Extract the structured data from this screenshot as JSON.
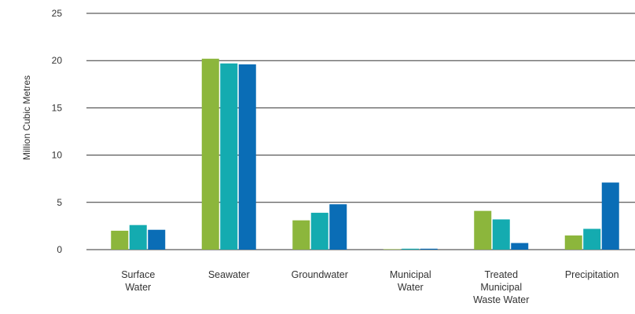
{
  "chart_data": {
    "type": "bar",
    "title": "",
    "xlabel": "",
    "ylabel": "Million Cubic Metres",
    "ylim": [
      0,
      25
    ],
    "yticks": [
      0,
      5,
      10,
      15,
      20,
      25
    ],
    "grid": true,
    "legend": "none",
    "categories": [
      [
        "Surface",
        "Water"
      ],
      [
        "Seawater"
      ],
      [
        "Groundwater"
      ],
      [
        "Municipal",
        "Water"
      ],
      [
        "Treated",
        "Municipal",
        "Waste Water"
      ],
      [
        "Precipitation"
      ]
    ],
    "series": [
      {
        "color": "#8cb63c",
        "values": [
          2.0,
          20.2,
          3.1,
          0.05,
          4.1,
          1.5
        ]
      },
      {
        "color": "#14abb0",
        "values": [
          2.6,
          19.7,
          3.9,
          0.1,
          3.2,
          2.2
        ]
      },
      {
        "color": "#0a6db6",
        "values": [
          2.1,
          19.6,
          4.8,
          0.1,
          0.7,
          7.1
        ]
      }
    ]
  }
}
